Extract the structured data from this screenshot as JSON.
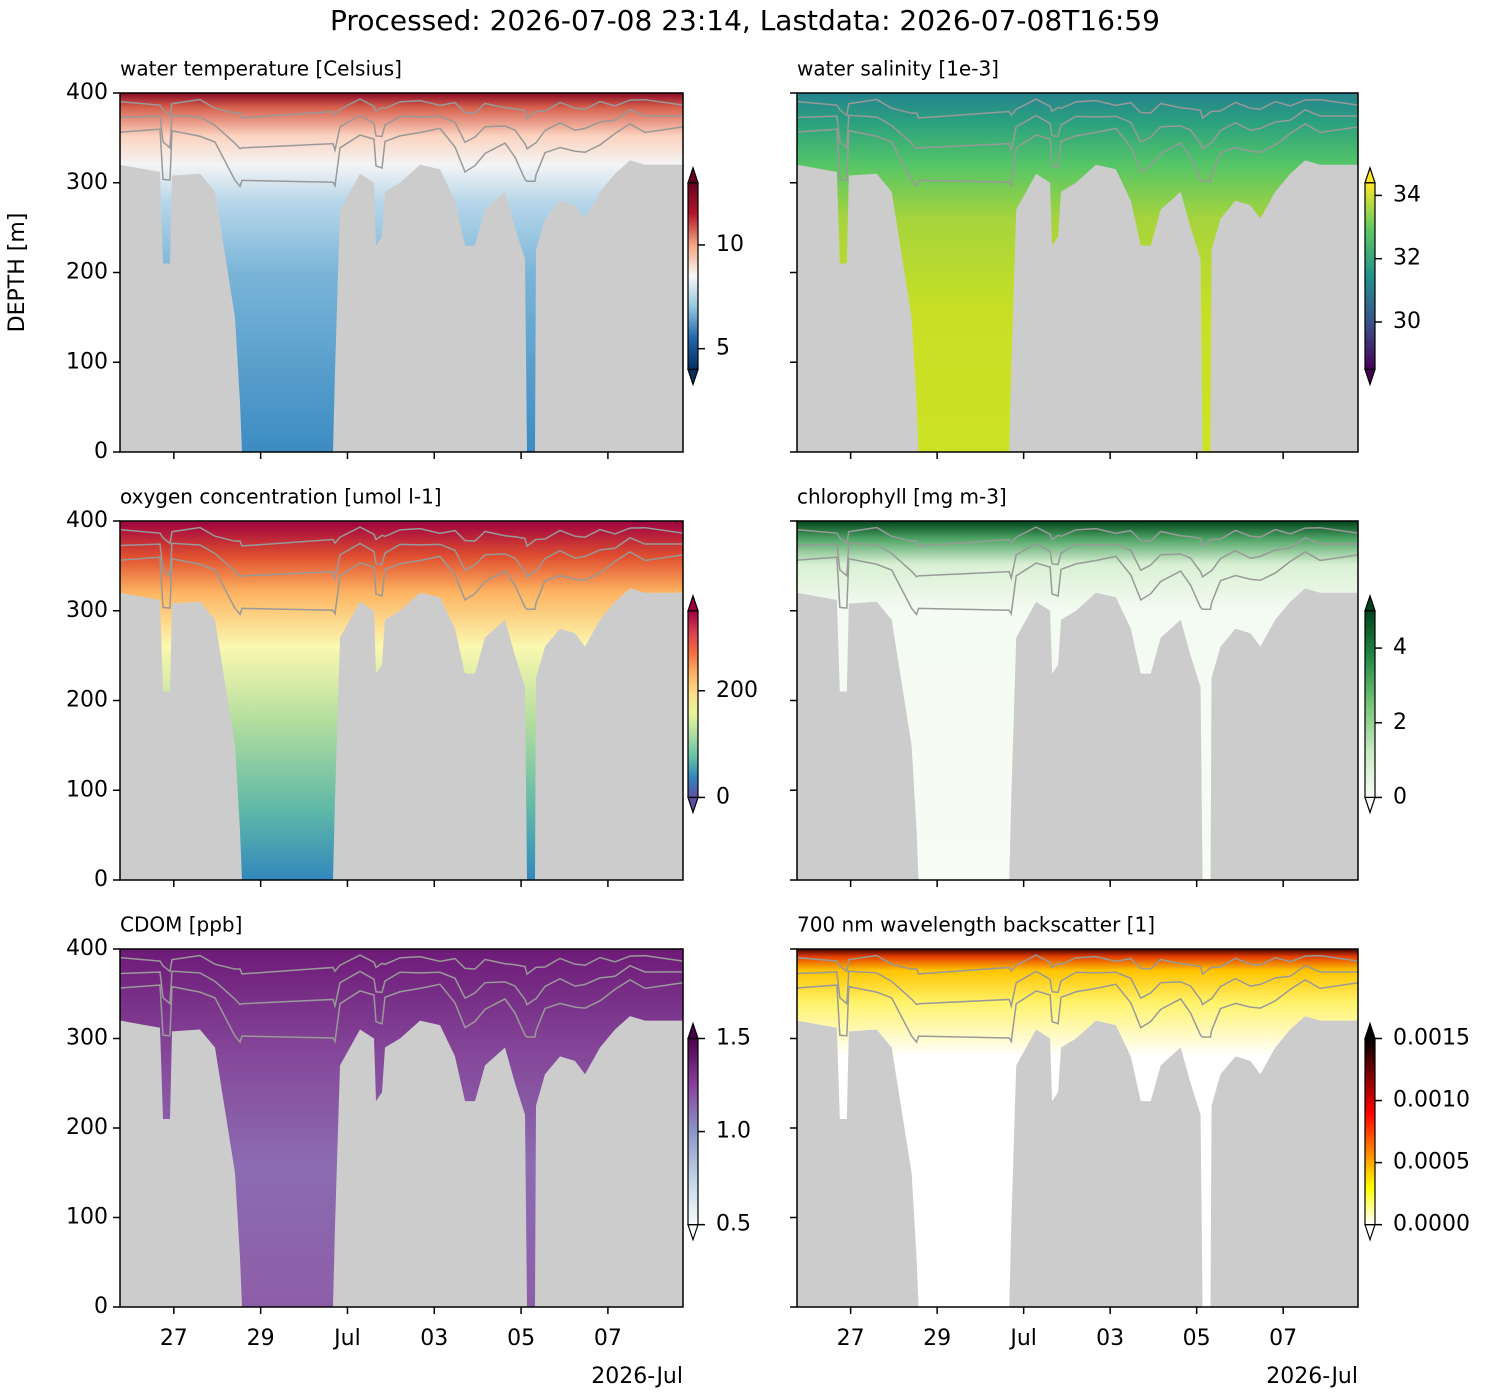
{
  "title": "Processed: 2026-07-08 23:14, Lastdata: 2026-07-08T16:59",
  "chart_data": [
    {
      "type": "heatmap",
      "title": "water temperature [Celsius]",
      "ylabel": "DEPTH [m]",
      "ylim": [
        400,
        0
      ],
      "yticks": [
        0,
        100,
        200,
        300,
        400
      ],
      "show_ytick_labels": true,
      "xlim": [
        25.76,
        38.73
      ],
      "xticks": [
        27,
        29,
        31,
        33,
        35,
        37
      ],
      "show_xtick_labels": false,
      "clim": [
        4,
        13
      ],
      "cticks": [
        5,
        10
      ],
      "extend": "both",
      "colormap": [
        "#053061",
        "#2166ac",
        "#92c5de",
        "#f7f7f7",
        "#f4a582",
        "#b2182b",
        "#67001f"
      ]
    },
    {
      "type": "heatmap",
      "title": "water salinity [1e-3]",
      "ylim": [
        400,
        0
      ],
      "yticks": [
        0,
        100,
        200,
        300,
        400
      ],
      "show_ytick_labels": false,
      "xlim": [
        25.76,
        38.73
      ],
      "xticks": [
        27,
        29,
        31,
        33,
        35,
        37
      ],
      "show_xtick_labels": false,
      "clim": [
        28.5,
        34.4
      ],
      "cticks": [
        30,
        32,
        34
      ],
      "extend": "both",
      "colormap": [
        "#440154",
        "#3b528b",
        "#21918c",
        "#5ec962",
        "#fde725"
      ]
    },
    {
      "type": "heatmap",
      "title": "oxygen concentration [umol l-1]",
      "ylim": [
        400,
        0
      ],
      "yticks": [
        0,
        100,
        200,
        300,
        400
      ],
      "show_ytick_labels": true,
      "xlim": [
        25.76,
        38.73
      ],
      "xticks": [
        27,
        29,
        31,
        33,
        35,
        37
      ],
      "show_xtick_labels": false,
      "clim": [
        0,
        350
      ],
      "cticks": [
        0,
        200
      ],
      "extend": "both",
      "colormap": [
        "#5e4fa2",
        "#3288bd",
        "#66c2a5",
        "#abdda4",
        "#e6f598",
        "#fee08b",
        "#fdae61",
        "#f46d43",
        "#d53e4f",
        "#9e0142"
      ]
    },
    {
      "type": "heatmap",
      "title": "chlorophyll [mg m-3]",
      "ylim": [
        400,
        0
      ],
      "yticks": [
        0,
        100,
        200,
        300,
        400
      ],
      "show_ytick_labels": false,
      "xlim": [
        25.76,
        38.73
      ],
      "xticks": [
        27,
        29,
        31,
        33,
        35,
        37
      ],
      "show_xtick_labels": false,
      "clim": [
        0,
        5
      ],
      "cticks": [
        0,
        2,
        4
      ],
      "extend": "both",
      "colormap": [
        "#f7fcf5",
        "#c7e9c0",
        "#74c476",
        "#238b45",
        "#00441b"
      ]
    },
    {
      "type": "heatmap",
      "title": "CDOM [ppb]",
      "ylim": [
        400,
        0
      ],
      "yticks": [
        0,
        100,
        200,
        300,
        400
      ],
      "show_ytick_labels": true,
      "xlim": [
        25.76,
        38.73
      ],
      "xticks": [
        27,
        29,
        {
          "value": 31,
          "label": "Jul"
        },
        {
          "value": 33,
          "label": "03"
        },
        {
          "value": 35,
          "label": "05"
        },
        {
          "value": 37,
          "label": "07"
        }
      ],
      "show_xtick_labels": true,
      "x_offset_label": "2026-Jul",
      "clim": [
        0.5,
        1.5
      ],
      "cticks": [
        0.5,
        {
          "value": 1,
          "label": "1.0"
        },
        1.5
      ],
      "extend": "both",
      "colormap": [
        "#f7fcfd",
        "#bfd3e6",
        "#8c96c6",
        "#88419d",
        "#4d004b"
      ]
    },
    {
      "type": "heatmap",
      "title": "700 nm wavelength backscatter [1]",
      "ylim": [
        400,
        0
      ],
      "yticks": [
        0,
        100,
        200,
        300,
        400
      ],
      "show_ytick_labels": false,
      "xlim": [
        25.76,
        38.73
      ],
      "xticks": [
        27,
        29,
        {
          "value": 31,
          "label": "Jul"
        },
        {
          "value": 33,
          "label": "03"
        },
        {
          "value": 35,
          "label": "05"
        },
        {
          "value": 37,
          "label": "07"
        }
      ],
      "show_xtick_labels": true,
      "x_offset_label": "2026-Jul",
      "clim": [
        0,
        0.0015
      ],
      "cticks": [
        {
          "value": 0,
          "label": "0.0000"
        },
        {
          "value": 0.0005,
          "label": "0.0005"
        },
        {
          "value": 0.001,
          "label": "0.0010"
        },
        {
          "value": 0.0015,
          "label": "0.0015"
        }
      ],
      "extend": "both",
      "colormap": [
        "#ffffff",
        "#ffff00",
        "#ff8000",
        "#ff0000",
        "#800000",
        "#000000"
      ]
    }
  ]
}
